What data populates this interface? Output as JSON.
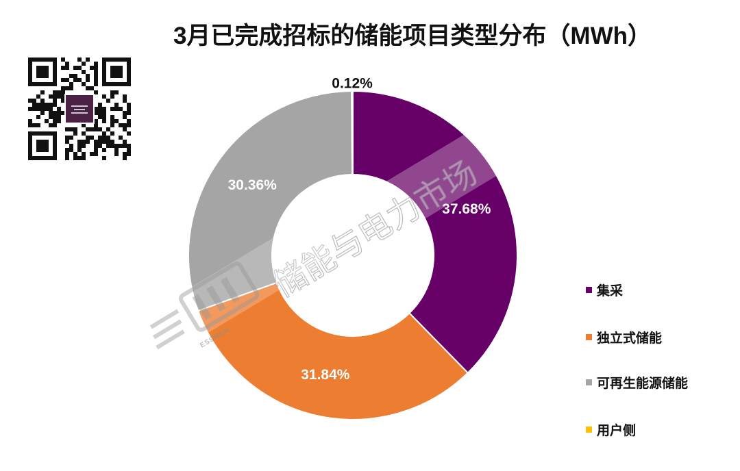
{
  "chart_data": {
    "type": "pie",
    "title": "3月已完成招标的储能项目类型分布（MWh）",
    "categories": [
      "集采",
      "独立式储能",
      "可再生能源储能",
      "用户侧"
    ],
    "values": [
      37.68,
      31.84,
      30.36,
      0.12
    ],
    "value_suffix": "%",
    "colors": [
      "#660066",
      "#ED7D31",
      "#A5A5A5",
      "#FFC000"
    ],
    "legend": {
      "position": "right"
    }
  },
  "watermark": {
    "text": "储能与电力市场",
    "brand": "ESSMEN"
  },
  "qr_code": {
    "icon": "qr-code-icon",
    "logo_color": "#4B2145"
  }
}
